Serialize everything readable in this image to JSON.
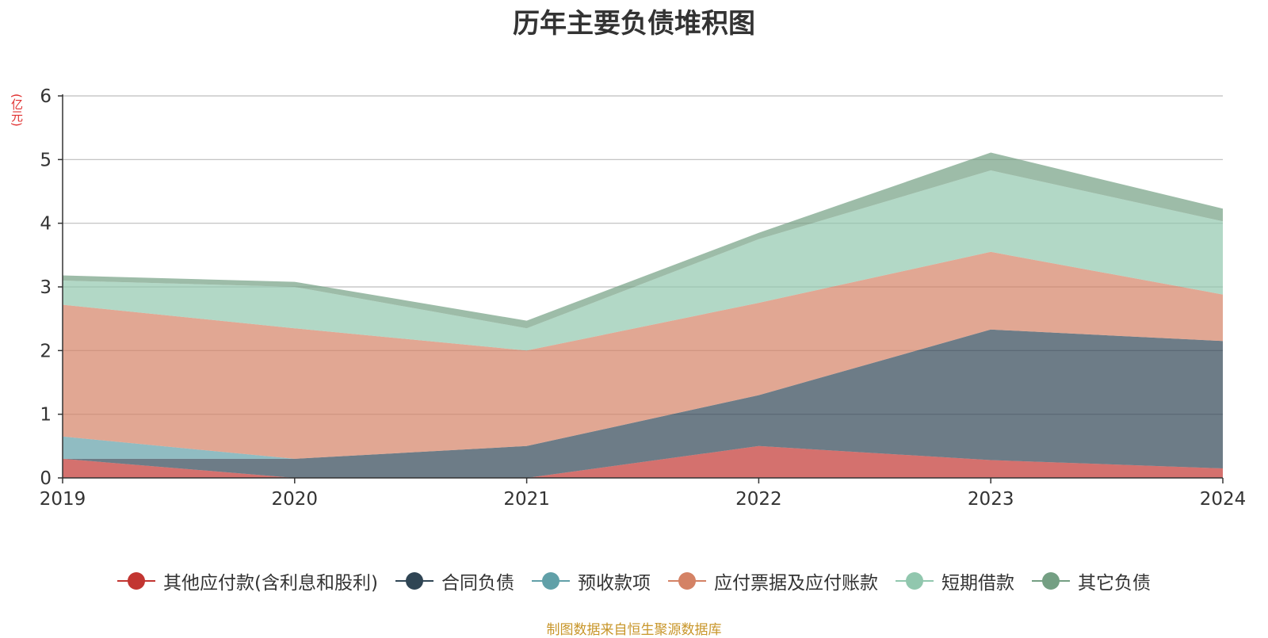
{
  "chart_data": {
    "type": "area",
    "stacked": true,
    "title": "历年主要负债堆积图",
    "ylabel": "(亿元)",
    "categories": [
      "2019",
      "2020",
      "2021",
      "2022",
      "2023",
      "2024"
    ],
    "ylim": [
      0,
      6
    ],
    "yticks": [
      0,
      1,
      2,
      3,
      4,
      5,
      6
    ],
    "grid": true,
    "legend_position": "bottom",
    "series": [
      {
        "name": "其他应付款(含利息和股利)",
        "color": "#c23531",
        "values": [
          0.3,
          0.0,
          0.0,
          0.5,
          0.28,
          0.15
        ]
      },
      {
        "name": "合同负债",
        "color": "#2f4554",
        "values": [
          0.0,
          0.3,
          0.5,
          0.8,
          2.05,
          2.0
        ]
      },
      {
        "name": "预收款项",
        "color": "#61a0a8",
        "values": [
          0.35,
          0.0,
          0.0,
          0.0,
          0.0,
          0.0
        ]
      },
      {
        "name": "应付票据及应付账款",
        "color": "#d48265",
        "values": [
          2.07,
          2.05,
          1.5,
          1.45,
          1.22,
          0.73
        ]
      },
      {
        "name": "短期借款",
        "color": "#91c7ae",
        "values": [
          0.38,
          0.65,
          0.35,
          1.0,
          1.28,
          1.15
        ]
      },
      {
        "name": "其它负债",
        "color": "#749f83",
        "values": [
          0.08,
          0.08,
          0.12,
          0.1,
          0.28,
          0.2
        ]
      }
    ]
  },
  "source_note": "制图数据来自恒生聚源数据库"
}
